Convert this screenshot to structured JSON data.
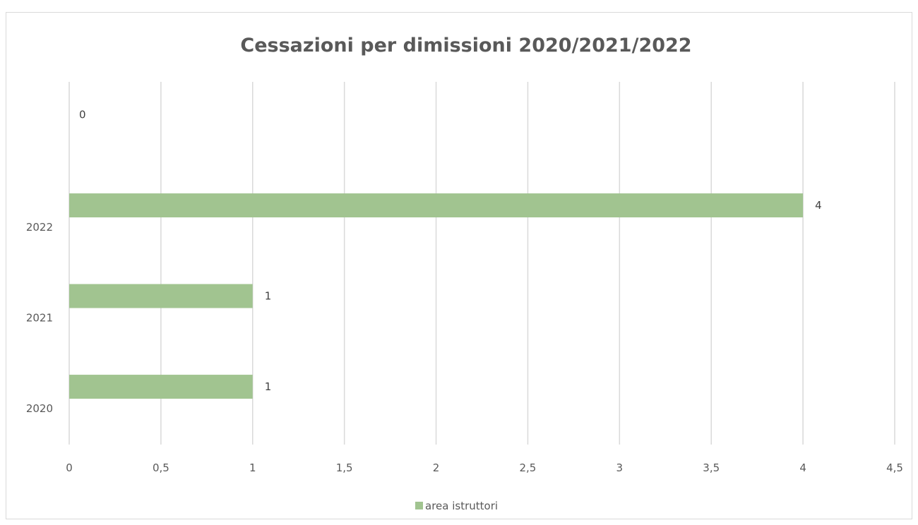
{
  "chart_data": {
    "type": "bar",
    "orientation": "horizontal",
    "title": "Cessazioni per dimissioni 2020/2021/2022",
    "categories": [
      "2020",
      "2021",
      "2022"
    ],
    "series": [
      {
        "name": "area istruttori",
        "values": [
          1,
          1,
          4
        ],
        "color": "#a1c490"
      },
      {
        "name": "",
        "values": [
          null,
          null,
          0
        ],
        "color": "#a1c490"
      }
    ],
    "data_labels": [
      "1",
      "1",
      "4",
      "0"
    ],
    "x_ticks": [
      "0",
      "0,5",
      "1",
      "1,5",
      "2",
      "2,5",
      "3",
      "3,5",
      "4",
      "4,5"
    ],
    "xlim": [
      0,
      4.5
    ],
    "grid": true,
    "gridline_color": "#d9d9d9",
    "legend": {
      "position": "bottom",
      "entries": [
        "area istruttori"
      ]
    }
  }
}
